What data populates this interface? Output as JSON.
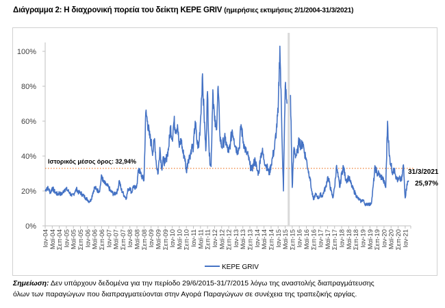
{
  "title": {
    "main": "Διάγραμμα 2: Η διαχρονική πορεία του δείκτη ΚΕΡΕ GRIV",
    "sub": "(ημερήσιες εκτιμήσεις 2/1/2004-31/3/2021)"
  },
  "note": {
    "label": "Σημείωση:",
    "line1": " Δεν υπάρχουν δεδομένα για την περίοδο 29/6/2015-31/7/2015 λόγω της αναστολής διαπραγμάτευσης",
    "line2": "όλων των παραγώγων που διαπραγματεύονται στην Αγορά Παραγώγων σε συνέχεια της τραπεζικής αργίας."
  },
  "chart_data": {
    "type": "line",
    "title": "Η διαχρονική πορεία του δείκτη ΚΕΡΕ GRIV",
    "xlabel": "",
    "ylabel": "",
    "ylim": [
      0,
      110
    ],
    "y_ticks": [
      0,
      20,
      40,
      60,
      80,
      100
    ],
    "y_tick_labels": [
      "0%",
      "20%",
      "40%",
      "60%",
      "80%",
      "100%"
    ],
    "x_start": "2004-01",
    "x_frequency": "monthly",
    "x_tick_every_months": 4,
    "x_tick_labels": [
      "Ιαν-04",
      "Μαϊ-04",
      "Σεπ-04",
      "Ιαν-05",
      "Μαϊ-05",
      "Σεπ-05",
      "Ιαν-06",
      "Μαϊ-06",
      "Σεπ-06",
      "Ιαν-07",
      "Μαϊ-07",
      "Σεπ-07",
      "Ιαν-08",
      "Μαϊ-08",
      "Σεπ-08",
      "Ιαν-09",
      "Μαϊ-09",
      "Σεπ-09",
      "Ιαν-10",
      "Μαϊ-10",
      "Σεπ-10",
      "Ιαν-11",
      "Μαϊ-11",
      "Σεπ-11",
      "Ιαν-12",
      "Μαϊ-12",
      "Σεπ-12",
      "Ιαν-13",
      "Μαϊ-13",
      "Σεπ-13",
      "Ιαν-14",
      "Μαϊ-14",
      "Σεπ-14",
      "Ιαν-15",
      "Μαϊ-15",
      "Σεπ-15",
      "Ιαν-16",
      "Μαϊ-16",
      "Σεπ-16",
      "Ιαν-17",
      "Μαϊ-17",
      "Σεπ-17",
      "Ιαν-18",
      "Μαϊ-18",
      "Σεπ-18",
      "Ιαν-19",
      "Μαϊ-19",
      "Σεπ-19",
      "Ιαν-20",
      "Μαϊ-20",
      "Σεπ-20",
      "Ιαν-21"
    ],
    "series": [
      {
        "name": "ΚΕΡΕ GRIV",
        "color": "#4472c4",
        "values": [
          20,
          22,
          21,
          19,
          22,
          20,
          19,
          18,
          19,
          18,
          19,
          21,
          21,
          20,
          19,
          17,
          18,
          20,
          21,
          19,
          19,
          18,
          17,
          16,
          15,
          14,
          15,
          19,
          22,
          21,
          20,
          21,
          29,
          25,
          24,
          23,
          22,
          20,
          19,
          18,
          19,
          20,
          26,
          21,
          19,
          17,
          16,
          21,
          22,
          19,
          23,
          21,
          24,
          33,
          30,
          28,
          26,
          65,
          60,
          52,
          48,
          42,
          50,
          35,
          30,
          45,
          33,
          38,
          36,
          40,
          45,
          57,
          50,
          60,
          55,
          58,
          45,
          50,
          42,
          40,
          31,
          38,
          40,
          45,
          45,
          60,
          48,
          45,
          60,
          85,
          65,
          43,
          77,
          40,
          34,
          78,
          60,
          55,
          80,
          52,
          45,
          48,
          50,
          45,
          42,
          48,
          55,
          50,
          45,
          43,
          45,
          58,
          50,
          45,
          42,
          40,
          35,
          32,
          35,
          38,
          32,
          30,
          40,
          43,
          38,
          35,
          33,
          30,
          35,
          40,
          45,
          55,
          65,
          103,
          60,
          20,
          80,
          70,
          null,
          75,
          22,
          45,
          40,
          42,
          50,
          45,
          48,
          42,
          38,
          32,
          28,
          20,
          15,
          18,
          17,
          16,
          18,
          17,
          20,
          22,
          28,
          25,
          20,
          16,
          22,
          34,
          28,
          22,
          30,
          34,
          28,
          26,
          28,
          25,
          22,
          20,
          18,
          16,
          15,
          14,
          15,
          13,
          12,
          13,
          12,
          14,
          24,
          34,
          30,
          30,
          28,
          28,
          25,
          22,
          60,
          40,
          35,
          30,
          33,
          27,
          26,
          27,
          26,
          35,
          16,
          24,
          25.97
        ]
      }
    ],
    "reference_line": {
      "value": 32.94,
      "label": "Ιστορικός μέσος όρος: 32,94%",
      "color": "#ed7d31"
    },
    "gap_marker": {
      "month_index": 138,
      "color": "#d9d9d9"
    },
    "end_annotation": {
      "date": "31/3/2021",
      "value_label": "25,97%"
    },
    "legend": {
      "entry": "ΚΕΡΕ GRIV",
      "placement": "bottom"
    },
    "grid": false
  }
}
